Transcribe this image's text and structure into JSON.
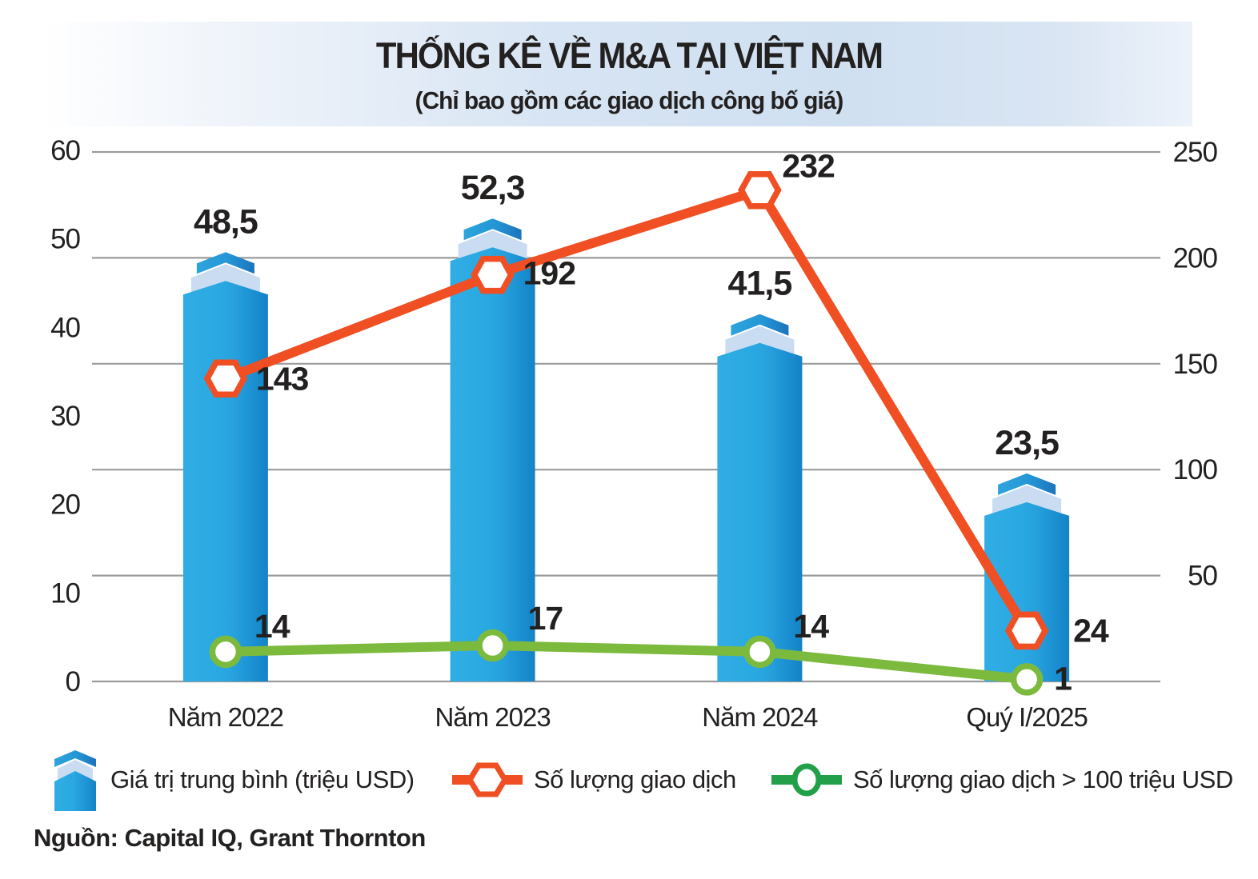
{
  "header": {
    "title": "THỐNG KÊ VỀ M&A TẠI VIỆT NAM",
    "subtitle": "(Chỉ bao gồm các giao dịch công bố giá)"
  },
  "source": {
    "text": "Nguồn: Capital IQ, Grant Thornton"
  },
  "chart_data": {
    "type": "combo",
    "categories": [
      "Năm 2022",
      "Năm 2023",
      "Năm 2024",
      "Quý I/2025"
    ],
    "series": [
      {
        "name": "Giá trị trung bình (triệu USD)",
        "type": "bar",
        "axis": "left",
        "values": [
          48.5,
          52.3,
          41.5,
          23.5
        ],
        "labels": [
          "48,5",
          "52,3",
          "41,5",
          "23,5"
        ],
        "color": "#29A8E1",
        "color_dark": "#1383C5",
        "cap_color": "#C9DCF2"
      },
      {
        "name": "Số lượng giao dịch",
        "type": "line",
        "axis": "right",
        "values": [
          143,
          192,
          232,
          24
        ],
        "labels": [
          "143",
          "192",
          "232",
          "24"
        ],
        "color": "#F04F24",
        "legend_color": "#F04F24",
        "marker": "hexagon",
        "label_offsets": [
          [
            38,
            14
          ],
          [
            38,
            12
          ],
          [
            28,
            -16
          ],
          [
            58,
            14
          ]
        ]
      },
      {
        "name": "Số lượng giao dịch > 100 triệu USD",
        "type": "line",
        "axis": "right",
        "values": [
          14,
          17,
          14,
          1
        ],
        "labels": [
          "14",
          "17",
          "14",
          "1"
        ],
        "color": "#7CBA3D",
        "legend_color": "#21A049",
        "marker": "circle",
        "label_offsets": [
          [
            36,
            -18
          ],
          [
            44,
            -20
          ],
          [
            42,
            -18
          ],
          [
            34,
            13
          ]
        ]
      }
    ],
    "left_axis": {
      "min": 0,
      "max": 60,
      "ticks": [
        0,
        10,
        20,
        30,
        40,
        50,
        60
      ]
    },
    "right_axis": {
      "min": 0,
      "max": 250,
      "ticks": [
        0,
        50,
        100,
        150,
        200,
        250
      ]
    },
    "grid": "horizontal gridlines at right-axis ticks",
    "grid_color": "#9B9B9B",
    "legend_position": "bottom"
  }
}
